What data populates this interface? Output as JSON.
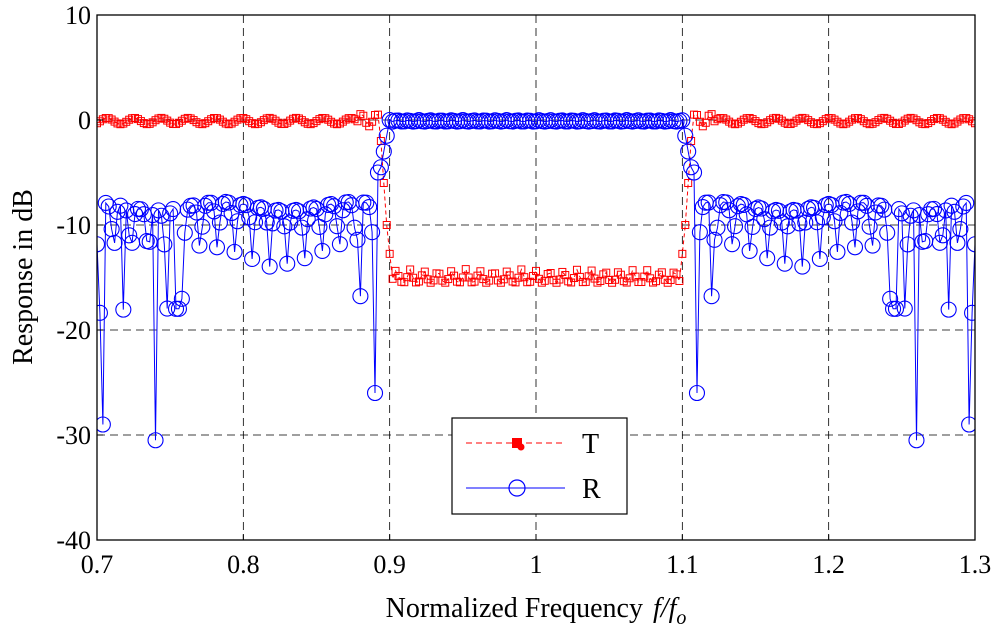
{
  "chart_data": {
    "type": "line",
    "title": "",
    "xlabel": {
      "prefix": "Normalized Frequency",
      "var": "f",
      "slash": "/",
      "base": "f",
      "sub": "o"
    },
    "ylabel": "Response in dB",
    "xlim": [
      0.7,
      1.3
    ],
    "ylim": [
      -40,
      10
    ],
    "xticks": [
      0.7,
      0.8,
      0.9,
      1.0,
      1.1,
      1.2,
      1.3
    ],
    "xtick_labels": [
      "0.7",
      "0.8",
      "0.9",
      "1",
      "1.1",
      "1.2",
      "1.3"
    ],
    "yticks": [
      10,
      0,
      -10,
      -20,
      -30,
      -40
    ],
    "ytick_labels": [
      "10",
      "0",
      "-10",
      "-20",
      "-30",
      "-40"
    ],
    "grid": true,
    "legend": {
      "position": "bottom-center",
      "entries": [
        "T",
        "R"
      ]
    },
    "colors": {
      "T": "#ff0000",
      "R": "#0000ff"
    },
    "band": {
      "low": 0.894,
      "high": 1.106
    },
    "series": [
      {
        "name": "T",
        "description": "transmission response",
        "style": "red dashed line with square markers",
        "keypoints": [
          {
            "x": 0.7,
            "y": 0.2
          },
          {
            "x": 0.8,
            "y": -0.3
          },
          {
            "x": 0.883,
            "y": 0.5
          },
          {
            "x": 0.892,
            "y": -2
          },
          {
            "x": 0.894,
            "y": -9.5
          },
          {
            "x": 0.9,
            "y": -15.5
          },
          {
            "x": 1.0,
            "y": -14
          },
          {
            "x": 1.1,
            "y": -15.5
          },
          {
            "x": 1.106,
            "y": -9.5
          },
          {
            "x": 1.108,
            "y": -2
          },
          {
            "x": 1.117,
            "y": 0.5
          },
          {
            "x": 1.3,
            "y": 0.2
          }
        ]
      },
      {
        "name": "R",
        "description": "reflection response",
        "style": "blue solid line with circle markers",
        "keypoints": [
          {
            "x": 0.703,
            "y": -16.5
          },
          {
            "x": 0.704,
            "y": -29
          },
          {
            "x": 0.74,
            "y": -30.5
          },
          {
            "x": 0.755,
            "y": -18.5
          },
          {
            "x": 0.8,
            "y": -8
          },
          {
            "x": 0.89,
            "y": -26
          },
          {
            "x": 0.894,
            "y": -2
          },
          {
            "x": 0.9,
            "y": 0
          },
          {
            "x": 1.0,
            "y": 0
          },
          {
            "x": 1.1,
            "y": 0
          },
          {
            "x": 1.11,
            "y": -26
          },
          {
            "x": 1.26,
            "y": -30.5
          },
          {
            "x": 1.296,
            "y": -29
          },
          {
            "x": 1.297,
            "y": -16.5
          }
        ]
      }
    ]
  }
}
